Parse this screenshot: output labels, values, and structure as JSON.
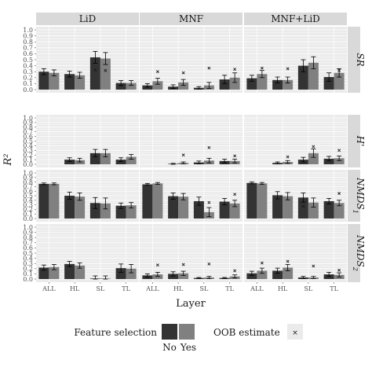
{
  "chart_data": {
    "type": "bar",
    "title": "",
    "xlabel": "Layer",
    "ylabel": "R²",
    "ylim": [
      0,
      1.0
    ],
    "yticks": [
      "0.0",
      "0.1",
      "0.2",
      "0.3",
      "0.4",
      "0.5",
      "0.6",
      "0.7",
      "0.8",
      "0.9",
      "1.0"
    ],
    "categories": [
      "ALL",
      "HL",
      "SL",
      "TL"
    ],
    "columns": [
      "LiD",
      "MNF",
      "MNF+LiD"
    ],
    "rows": [
      "SR",
      "H'",
      "NMDS1",
      "NMDS2"
    ],
    "row_labels": {
      "SR": "SR",
      "H'": "H'",
      "NMDS1": "NMDS",
      "NMDS1_sub": "1",
      "NMDS2": "NMDS",
      "NMDS2_sub": "2"
    },
    "grid": true,
    "legend": {
      "position": "bottom",
      "feature_title": "Feature selection",
      "no_label": "No",
      "yes_label": "Yes",
      "oob_title": "OOB estimate"
    },
    "colors": {
      "no": "#333333",
      "yes": "#808080",
      "panel": "#ebebeb",
      "strip": "#d9d9d9",
      "grid": "#ffffff"
    },
    "panels": [
      {
        "row": "SR",
        "col": "LiD",
        "bars": [
          {
            "cat": "ALL",
            "no": [
              0.3,
              0.05
            ],
            "yes": [
              0.28,
              0.05
            ],
            "oob": [
              null,
              null
            ]
          },
          {
            "cat": "HL",
            "no": [
              0.26,
              0.05
            ],
            "yes": [
              0.24,
              0.05
            ],
            "oob": [
              null,
              null
            ]
          },
          {
            "cat": "SL",
            "no": [
              0.54,
              0.1
            ],
            "yes": [
              0.52,
              0.1
            ],
            "oob": [
              0.33,
              0.32
            ]
          },
          {
            "cat": "TL",
            "no": [
              0.11,
              0.04
            ],
            "yes": [
              0.11,
              0.04
            ],
            "oob": [
              null,
              null
            ]
          }
        ]
      },
      {
        "row": "SR",
        "col": "MNF",
        "bars": [
          {
            "cat": "ALL",
            "no": [
              0.07,
              0.03
            ],
            "yes": [
              0.14,
              0.05
            ],
            "oob": [
              null,
              0.3
            ]
          },
          {
            "cat": "HL",
            "no": [
              0.05,
              0.03
            ],
            "yes": [
              0.12,
              0.05
            ],
            "oob": [
              null,
              0.28
            ]
          },
          {
            "cat": "SL",
            "no": [
              0.03,
              0.02
            ],
            "yes": [
              0.07,
              0.05
            ],
            "oob": [
              null,
              0.36
            ]
          },
          {
            "cat": "TL",
            "no": [
              0.17,
              0.07
            ],
            "yes": [
              0.2,
              0.08
            ],
            "oob": [
              null,
              0.34
            ]
          }
        ]
      },
      {
        "row": "SR",
        "col": "MNF+LiD",
        "bars": [
          {
            "cat": "ALL",
            "no": [
              0.19,
              0.05
            ],
            "yes": [
              0.26,
              0.06
            ],
            "oob": [
              null,
              0.36
            ]
          },
          {
            "cat": "HL",
            "no": [
              0.16,
              0.05
            ],
            "yes": [
              0.16,
              0.05
            ],
            "oob": [
              null,
              0.35
            ]
          },
          {
            "cat": "SL",
            "no": [
              0.4,
              0.1
            ],
            "yes": [
              0.45,
              0.1
            ],
            "oob": [
              null,
              null
            ]
          },
          {
            "cat": "TL",
            "no": [
              0.21,
              0.07
            ],
            "yes": [
              0.28,
              0.07
            ],
            "oob": [
              null,
              0.32
            ]
          }
        ]
      },
      {
        "row": "H'",
        "col": "LiD",
        "bars": [
          {
            "cat": "ALL",
            "no": [
              0,
              0
            ],
            "yes": [
              0,
              0
            ],
            "oob": [
              null,
              null
            ]
          },
          {
            "cat": "HL",
            "no": [
              0.1,
              0.04
            ],
            "yes": [
              0.09,
              0.04
            ],
            "oob": [
              null,
              null
            ]
          },
          {
            "cat": "SL",
            "no": [
              0.24,
              0.08
            ],
            "yes": [
              0.24,
              0.08
            ],
            "oob": [
              null,
              null
            ]
          },
          {
            "cat": "TL",
            "no": [
              0.1,
              0.04
            ],
            "yes": [
              0.16,
              0.05
            ],
            "oob": [
              null,
              null
            ]
          }
        ]
      },
      {
        "row": "H'",
        "col": "MNF",
        "bars": [
          {
            "cat": "ALL",
            "no": [
              0,
              0
            ],
            "yes": [
              0,
              0
            ],
            "oob": [
              null,
              null
            ]
          },
          {
            "cat": "HL",
            "no": [
              0.01,
              0.01
            ],
            "yes": [
              0.03,
              0.02
            ],
            "oob": [
              null,
              0.2
            ]
          },
          {
            "cat": "SL",
            "no": [
              0.04,
              0.03
            ],
            "yes": [
              0.08,
              0.05
            ],
            "oob": [
              null,
              0.36
            ]
          },
          {
            "cat": "TL",
            "no": [
              0.07,
              0.04
            ],
            "yes": [
              0.07,
              0.04
            ],
            "oob": [
              null,
              0.18
            ]
          }
        ]
      },
      {
        "row": "H'",
        "col": "MNF+LiD",
        "bars": [
          {
            "cat": "ALL",
            "no": [
              0,
              0
            ],
            "yes": [
              0,
              0
            ],
            "oob": [
              null,
              null
            ]
          },
          {
            "cat": "HL",
            "no": [
              0.03,
              0.02
            ],
            "yes": [
              0.05,
              0.03
            ],
            "oob": [
              null,
              0.16
            ]
          },
          {
            "cat": "SL",
            "no": [
              0.1,
              0.05
            ],
            "yes": [
              0.24,
              0.09
            ],
            "oob": [
              null,
              0.38
            ]
          },
          {
            "cat": "TL",
            "no": [
              0.12,
              0.05
            ],
            "yes": [
              0.13,
              0.05
            ],
            "oob": [
              null,
              0.3
            ]
          }
        ]
      },
      {
        "row": "NMDS1",
        "col": "LiD",
        "bars": [
          {
            "cat": "ALL",
            "no": [
              0.76,
              0.02
            ],
            "yes": [
              0.76,
              0.02
            ],
            "oob": [
              null,
              null
            ]
          },
          {
            "cat": "HL",
            "no": [
              0.5,
              0.08
            ],
            "yes": [
              0.48,
              0.08
            ],
            "oob": [
              null,
              null
            ]
          },
          {
            "cat": "SL",
            "no": [
              0.34,
              0.12
            ],
            "yes": [
              0.33,
              0.12
            ],
            "oob": [
              null,
              null
            ]
          },
          {
            "cat": "TL",
            "no": [
              0.28,
              0.06
            ],
            "yes": [
              0.29,
              0.06
            ],
            "oob": [
              null,
              null
            ]
          }
        ]
      },
      {
        "row": "NMDS1",
        "col": "MNF",
        "bars": [
          {
            "cat": "ALL",
            "no": [
              0.75,
              0.02
            ],
            "yes": [
              0.77,
              0.02
            ],
            "oob": [
              null,
              null
            ]
          },
          {
            "cat": "HL",
            "no": [
              0.49,
              0.07
            ],
            "yes": [
              0.48,
              0.07
            ],
            "oob": [
              null,
              null
            ]
          },
          {
            "cat": "SL",
            "no": [
              0.38,
              0.09
            ],
            "yes": [
              0.14,
              0.1
            ],
            "oob": [
              null,
              0.35
            ]
          },
          {
            "cat": "TL",
            "no": [
              0.37,
              0.07
            ],
            "yes": [
              0.33,
              0.07
            ],
            "oob": [
              null,
              0.53
            ]
          }
        ]
      },
      {
        "row": "NMDS1",
        "col": "MNF+LiD",
        "bars": [
          {
            "cat": "ALL",
            "no": [
              0.78,
              0.02
            ],
            "yes": [
              0.77,
              0.02
            ],
            "oob": [
              null,
              null
            ]
          },
          {
            "cat": "HL",
            "no": [
              0.51,
              0.08
            ],
            "yes": [
              0.49,
              0.08
            ],
            "oob": [
              null,
              null
            ]
          },
          {
            "cat": "SL",
            "no": [
              0.46,
              0.1
            ],
            "yes": [
              0.35,
              0.1
            ],
            "oob": [
              0.27,
              null
            ]
          },
          {
            "cat": "TL",
            "no": [
              0.38,
              0.06
            ],
            "yes": [
              0.34,
              0.06
            ],
            "oob": [
              null,
              0.55
            ]
          }
        ]
      },
      {
        "row": "NMDS2",
        "col": "LiD",
        "bars": [
          {
            "cat": "ALL",
            "no": [
              0.22,
              0.05
            ],
            "yes": [
              0.23,
              0.05
            ],
            "oob": [
              null,
              null
            ]
          },
          {
            "cat": "HL",
            "no": [
              0.29,
              0.05
            ],
            "yes": [
              0.26,
              0.05
            ],
            "oob": [
              null,
              null
            ]
          },
          {
            "cat": "SL",
            "no": [
              0.01,
              0.05
            ],
            "yes": [
              0.01,
              0.05
            ],
            "oob": [
              null,
              null
            ]
          },
          {
            "cat": "TL",
            "no": [
              0.21,
              0.08
            ],
            "yes": [
              0.2,
              0.08
            ],
            "oob": [
              null,
              null
            ]
          }
        ]
      },
      {
        "row": "NMDS2",
        "col": "MNF",
        "bars": [
          {
            "cat": "ALL",
            "no": [
              0.07,
              0.03
            ],
            "yes": [
              0.09,
              0.04
            ],
            "oob": [
              null,
              0.27
            ]
          },
          {
            "cat": "HL",
            "no": [
              0.1,
              0.04
            ],
            "yes": [
              0.11,
              0.04
            ],
            "oob": [
              null,
              0.28
            ]
          },
          {
            "cat": "SL",
            "no": [
              0.02,
              0.01
            ],
            "yes": [
              0.03,
              0.02
            ],
            "oob": [
              null,
              0.29
            ]
          },
          {
            "cat": "TL",
            "no": [
              0.02,
              0.01
            ],
            "yes": [
              0.05,
              0.03
            ],
            "oob": [
              null,
              0.16
            ]
          }
        ]
      },
      {
        "row": "NMDS2",
        "col": "MNF+LiD",
        "bars": [
          {
            "cat": "ALL",
            "no": [
              0.11,
              0.04
            ],
            "yes": [
              0.16,
              0.05
            ],
            "oob": [
              null,
              0.31
            ]
          },
          {
            "cat": "HL",
            "no": [
              0.16,
              0.05
            ],
            "yes": [
              0.22,
              0.06
            ],
            "oob": [
              null,
              0.34
            ]
          },
          {
            "cat": "SL",
            "no": [
              0.03,
              0.02
            ],
            "yes": [
              0.03,
              0.02
            ],
            "oob": [
              null,
              0.25
            ]
          },
          {
            "cat": "TL",
            "no": [
              0.09,
              0.04
            ],
            "yes": [
              0.08,
              0.04
            ],
            "oob": [
              null,
              0.17
            ]
          }
        ]
      }
    ]
  }
}
